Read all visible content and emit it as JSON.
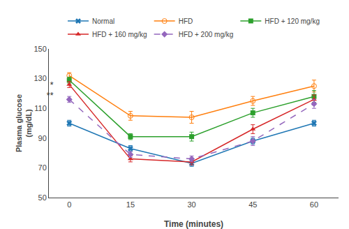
{
  "chart_data": {
    "type": "line",
    "x": [
      0,
      15,
      30,
      45,
      60
    ],
    "series": [
      {
        "name": "Normal",
        "values": [
          100,
          83,
          73,
          88,
          100
        ],
        "error": [
          2,
          2,
          2,
          2,
          2
        ],
        "marker": "x",
        "line_style": "solid"
      },
      {
        "name": "HFD",
        "values": [
          132,
          105,
          104,
          115,
          125
        ],
        "error": [
          2,
          3,
          4,
          3,
          4
        ],
        "marker": "circle-open",
        "line_style": "solid"
      },
      {
        "name": "HFD + 120 mg/kg",
        "values": [
          129,
          91,
          91,
          107,
          118
        ],
        "error": [
          2,
          2,
          3,
          3,
          4
        ],
        "marker": "square",
        "line_style": "solid"
      },
      {
        "name": "HFD + 160 mg/kg",
        "values": [
          126,
          76,
          74,
          96,
          116
        ],
        "error": [
          2,
          2,
          2,
          3,
          3
        ],
        "marker": "triangle-up",
        "line_style": "solid"
      },
      {
        "name": "HFD + 200 mg/kg",
        "values": [
          116,
          79,
          76,
          88,
          113
        ],
        "error": [
          2,
          2,
          2,
          3,
          3
        ],
        "marker": "diamond",
        "line_style": "dashed"
      }
    ],
    "xlabel": "Time (minutes)",
    "ylabel": "Plasma glucose\n(mg/dL)",
    "xlim": [
      -5,
      66
    ],
    "xticks": [
      0,
      15,
      30,
      45,
      60
    ],
    "ylim": [
      50,
      150
    ],
    "yticks": [
      50,
      70,
      90,
      110,
      130,
      150
    ],
    "annotations": [
      {
        "text": "*",
        "x": -3.5,
        "y": 126
      },
      {
        "text": "**",
        "x": -3.5,
        "y": 119
      }
    ],
    "legend": "top",
    "grid": false
  }
}
